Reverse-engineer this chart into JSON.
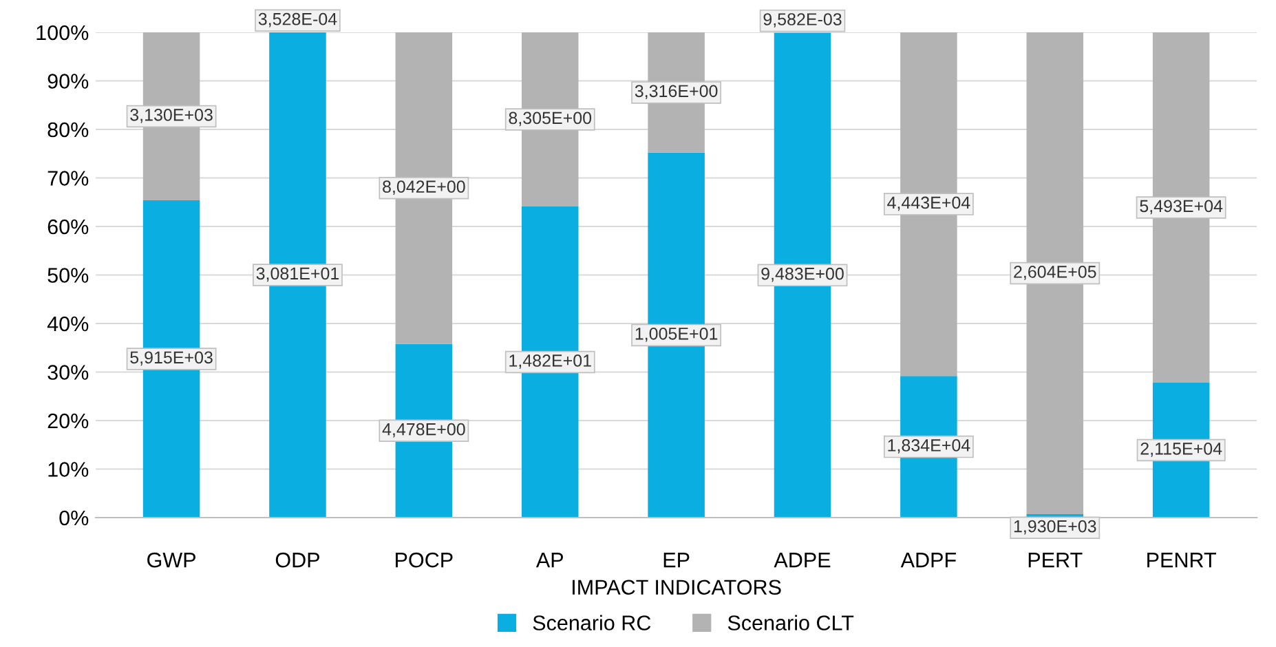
{
  "chart_data": {
    "type": "bar",
    "stacked": true,
    "xlabel": "IMPACT INDICATORS",
    "categories": [
      "GWP",
      "ODP",
      "POCP",
      "AP",
      "EP",
      "ADPE",
      "ADPF",
      "PERT",
      "PENRT"
    ],
    "series": [
      {
        "name": "Scenario RC",
        "color": "#0aaee0",
        "values": [
          65.4,
          100.0,
          35.8,
          64.1,
          75.2,
          99.9,
          29.2,
          0.7,
          27.8
        ]
      },
      {
        "name": "Scenario CLT",
        "color": "#b3b3b3",
        "values": [
          34.6,
          0.0,
          64.2,
          35.9,
          24.8,
          0.1,
          70.8,
          99.3,
          72.2
        ]
      }
    ],
    "annotations": [
      "5,915E+03",
      "3,130E+03",
      "3,081E+01",
      "3,528E-04",
      "4,478E+00",
      "8,042E+00",
      "1,482E+01",
      "8,305E+00",
      "1,005E+01",
      "3,316E+00",
      "9,483E+00",
      "9,582E-03",
      "1,834E+04",
      "4,443E+04",
      "1,930E+03",
      "2,604E+05",
      "2,115E+04",
      "5,493E+04"
    ],
    "ylim": [
      0,
      100
    ],
    "yticks": [
      {
        "value": 0,
        "label": "0%"
      },
      {
        "value": 10,
        "label": "10%"
      },
      {
        "value": 20,
        "label": "20%"
      },
      {
        "value": 30,
        "label": "30%"
      },
      {
        "value": 40,
        "label": "40%"
      },
      {
        "value": 50,
        "label": "50%"
      },
      {
        "value": 60,
        "label": "60%"
      },
      {
        "value": 70,
        "label": "70%"
      },
      {
        "value": 80,
        "label": "80%"
      },
      {
        "value": 90,
        "label": "90%"
      },
      {
        "value": 100,
        "label": "100%"
      }
    ],
    "grid": "y",
    "legend": "bottom"
  }
}
